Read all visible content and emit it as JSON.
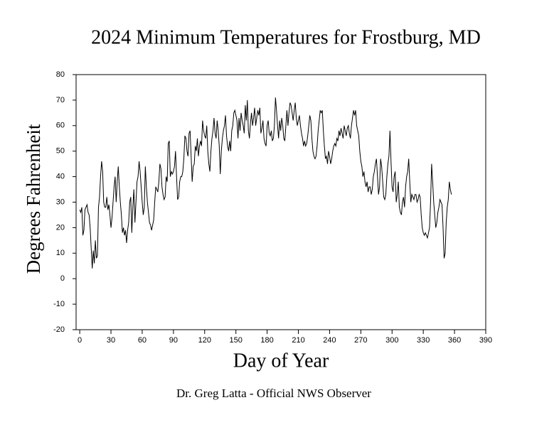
{
  "chart_data": {
    "type": "line",
    "title": "2024 Minimum Temperatures for Frostburg, MD",
    "xlabel": "Day of Year",
    "ylabel": "Degrees Fahrenheit",
    "footer": "Dr. Greg Latta - Official NWS Observer",
    "color": "#000000",
    "xlim": [
      -3.5,
      390
    ],
    "ylim": [
      -20,
      80
    ],
    "xticks": [
      0,
      30,
      60,
      90,
      120,
      150,
      180,
      210,
      240,
      270,
      300,
      330,
      360,
      390
    ],
    "yticks": [
      -20,
      -10,
      0,
      10,
      20,
      30,
      40,
      50,
      60,
      70,
      80
    ],
    "x": [
      0,
      1,
      2,
      3,
      4,
      5,
      6,
      7,
      8,
      9,
      10,
      11,
      12,
      13,
      14,
      15,
      16,
      17,
      18,
      19,
      20,
      21,
      22,
      23,
      24,
      25,
      26,
      27,
      28,
      29,
      30,
      31,
      32,
      33,
      34,
      35,
      36,
      37,
      38,
      39,
      40,
      41,
      42,
      43,
      44,
      45,
      46,
      47,
      48,
      49,
      50,
      51,
      52,
      53,
      54,
      55,
      56,
      57,
      58,
      59,
      60,
      61,
      62,
      63,
      64,
      65,
      66,
      67,
      68,
      69,
      70,
      71,
      72,
      73,
      74,
      75,
      76,
      77,
      78,
      79,
      80,
      81,
      82,
      83,
      84,
      85,
      86,
      87,
      88,
      89,
      90,
      91,
      92,
      93,
      94,
      95,
      96,
      97,
      98,
      99,
      100,
      101,
      102,
      103,
      104,
      105,
      106,
      107,
      108,
      109,
      110,
      111,
      112,
      113,
      114,
      115,
      116,
      117,
      118,
      119,
      120,
      121,
      122,
      123,
      124,
      125,
      126,
      127,
      128,
      129,
      130,
      131,
      132,
      133,
      134,
      135,
      136,
      137,
      138,
      139,
      140,
      141,
      142,
      143,
      144,
      145,
      146,
      147,
      148,
      149,
      150,
      151,
      152,
      153,
      154,
      155,
      156,
      157,
      158,
      159,
      160,
      161,
      162,
      163,
      164,
      165,
      166,
      167,
      168,
      169,
      170,
      171,
      172,
      173,
      174,
      175,
      176,
      177,
      178,
      179,
      180,
      181,
      182,
      183,
      184,
      185,
      186,
      187,
      188,
      189,
      190,
      191,
      192,
      193,
      194,
      195,
      196,
      197,
      198,
      199,
      200,
      201,
      202,
      203,
      204,
      205,
      206,
      207,
      208,
      209,
      210,
      211,
      212,
      213,
      214,
      215,
      216,
      217,
      218,
      219,
      220,
      221,
      222,
      223,
      224,
      225,
      226,
      227,
      228,
      229,
      230,
      231,
      232,
      233,
      234,
      235,
      236,
      237,
      238,
      239,
      240,
      241,
      242,
      243,
      244,
      245,
      246,
      247,
      248,
      249,
      250,
      251,
      252,
      253,
      254,
      255,
      256,
      257,
      258,
      259,
      260,
      261,
      262,
      263,
      264,
      265,
      266,
      267,
      268,
      269,
      270,
      271,
      272,
      273,
      274,
      275,
      276,
      277,
      278,
      279,
      280,
      281,
      282,
      283,
      284,
      285,
      286,
      287,
      288,
      289,
      290,
      291,
      292,
      293,
      294,
      295,
      296,
      297,
      298,
      299,
      300,
      301,
      302,
      303,
      304,
      305,
      306,
      307,
      308,
      309,
      310,
      311,
      312,
      313,
      314,
      315,
      316,
      317,
      318,
      319,
      320,
      321,
      322,
      323,
      324,
      325,
      326,
      327,
      328,
      329,
      330,
      331,
      332,
      333,
      334,
      335,
      336,
      337,
      338,
      339,
      340,
      341,
      342,
      343,
      344,
      345,
      346,
      347,
      348,
      349,
      350,
      351,
      352,
      353,
      354,
      355,
      356,
      357
    ],
    "values": [
      27,
      26,
      28,
      17,
      19,
      27,
      28,
      29,
      26,
      25,
      20,
      12,
      4,
      11,
      6,
      15,
      8,
      9,
      28,
      32,
      40,
      46,
      42,
      30,
      28,
      28,
      32,
      27,
      29,
      25,
      20,
      24,
      30,
      36,
      40,
      30,
      38,
      44,
      36,
      30,
      25,
      18,
      20,
      17,
      19,
      14,
      19,
      22,
      30,
      32,
      18,
      28,
      35,
      22,
      30,
      38,
      40,
      46,
      42,
      36,
      30,
      25,
      28,
      44,
      36,
      30,
      26,
      22,
      21,
      19,
      21,
      23,
      30,
      36,
      35,
      34,
      38,
      45,
      43,
      36,
      33,
      31,
      32,
      40,
      38,
      53,
      54,
      40,
      42,
      41,
      42,
      44,
      50,
      40,
      31,
      32,
      38,
      40,
      40,
      42,
      47,
      56,
      55,
      50,
      48,
      57,
      58,
      48,
      38,
      44,
      45,
      52,
      50,
      55,
      48,
      52,
      54,
      52,
      62,
      58,
      56,
      55,
      60,
      50,
      45,
      42,
      50,
      55,
      58,
      63,
      57,
      55,
      62,
      58,
      52,
      41,
      50,
      55,
      58,
      60,
      64,
      56,
      52,
      50,
      54,
      50,
      58,
      60,
      65,
      66,
      64,
      62,
      55,
      63,
      58,
      65,
      62,
      60,
      57,
      68,
      62,
      70,
      58,
      55,
      61,
      65,
      60,
      63,
      67,
      60,
      63,
      66,
      64,
      67,
      57,
      59,
      62,
      55,
      53,
      52,
      60,
      62,
      57,
      56,
      58,
      54,
      55,
      60,
      71,
      66,
      60,
      55,
      62,
      58,
      63,
      60,
      55,
      54,
      60,
      66,
      60,
      65,
      69,
      68,
      65,
      62,
      66,
      69,
      63,
      60,
      62,
      64,
      60,
      57,
      55,
      52,
      54,
      52,
      53,
      56,
      60,
      64,
      62,
      55,
      50,
      48,
      47,
      48,
      52,
      58,
      62,
      66,
      65,
      66,
      58,
      52,
      47,
      48,
      45,
      50,
      48,
      45,
      47,
      50,
      52,
      53,
      52,
      55,
      54,
      58,
      56,
      59,
      57,
      55,
      60,
      58,
      56,
      59,
      60,
      57,
      55,
      60,
      63,
      66,
      64,
      66,
      60,
      58,
      56,
      50,
      46,
      44,
      40,
      42,
      38,
      36,
      38,
      34,
      36,
      36,
      33,
      35,
      40,
      42,
      45,
      47,
      40,
      33,
      36,
      47,
      44,
      38,
      32,
      31,
      33,
      40,
      45,
      48,
      58,
      46,
      36,
      34,
      40,
      42,
      30,
      33,
      38,
      28,
      26,
      25,
      30,
      32,
      28,
      36,
      40,
      42,
      47,
      38,
      30,
      33,
      32,
      31,
      33,
      33,
      30,
      31,
      33,
      32,
      25,
      20,
      18,
      17,
      18,
      17,
      16,
      18,
      20,
      30,
      45,
      38,
      30,
      25,
      20,
      22,
      26,
      28,
      31,
      30,
      29,
      20,
      8,
      10,
      22,
      28,
      31,
      38,
      35,
      33
    ]
  }
}
